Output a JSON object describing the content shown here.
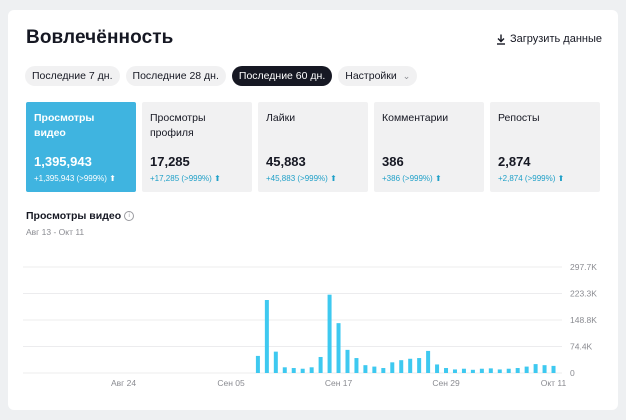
{
  "header": {
    "title": "Вовлечённость",
    "download_label": "Загрузить данные"
  },
  "periods": [
    {
      "label": "Последние 7 дн.",
      "active": false
    },
    {
      "label": "Последние 28 дн.",
      "active": false
    },
    {
      "label": "Последние 60 дн.",
      "active": true
    }
  ],
  "settings_label": "Настройки",
  "metrics": [
    {
      "label": "Просмотры видео",
      "value": "1,395,943",
      "delta": "+1,395,943 (>999%)",
      "active": true
    },
    {
      "label": "Просмотры профиля",
      "value": "17,285",
      "delta": "+17,285 (>999%)",
      "active": false
    },
    {
      "label": "Лайки",
      "value": "45,883",
      "delta": "+45,883 (>999%)",
      "active": false
    },
    {
      "label": "Комментарии",
      "value": "386",
      "delta": "+386 (>999%)",
      "active": false
    },
    {
      "label": "Репосты",
      "value": "2,874",
      "delta": "+2,874 (>999%)",
      "active": false
    }
  ],
  "chart_title": "Просмотры видео",
  "chart_subtitle": "Авг 13 - Окт 11",
  "colors": {
    "accent": "#3fb4e0",
    "bar": "#3ec9f0",
    "delta": "#20a0c8"
  },
  "chart_data": {
    "type": "bar",
    "title": "Просмотры видео",
    "subtitle": "Авг 13 - Окт 11",
    "ylim": [
      0,
      297700
    ],
    "y_ticks": [
      "297.7K",
      "223.3K",
      "148.8K",
      "74.4K",
      "0"
    ],
    "x_tick_labels": [
      {
        "label": "Авг 24",
        "index": 11
      },
      {
        "label": "Сен 05",
        "index": 23
      },
      {
        "label": "Сен 17",
        "index": 35
      },
      {
        "label": "Сен 29",
        "index": 47
      },
      {
        "label": "Окт 11",
        "index": 59
      }
    ],
    "values": [
      0,
      0,
      0,
      0,
      0,
      0,
      0,
      0,
      0,
      0,
      0,
      0,
      0,
      0,
      0,
      0,
      0,
      0,
      0,
      0,
      0,
      0,
      0,
      0,
      0,
      0,
      48000,
      205000,
      60000,
      16000,
      14000,
      12000,
      16000,
      45000,
      220000,
      140000,
      65000,
      42000,
      22000,
      18000,
      14000,
      30000,
      36000,
      40000,
      42000,
      62000,
      24000,
      14000,
      10000,
      12000,
      9000,
      12000,
      13000,
      10000,
      12000,
      14000,
      18000,
      25000,
      22000,
      20000
    ]
  }
}
